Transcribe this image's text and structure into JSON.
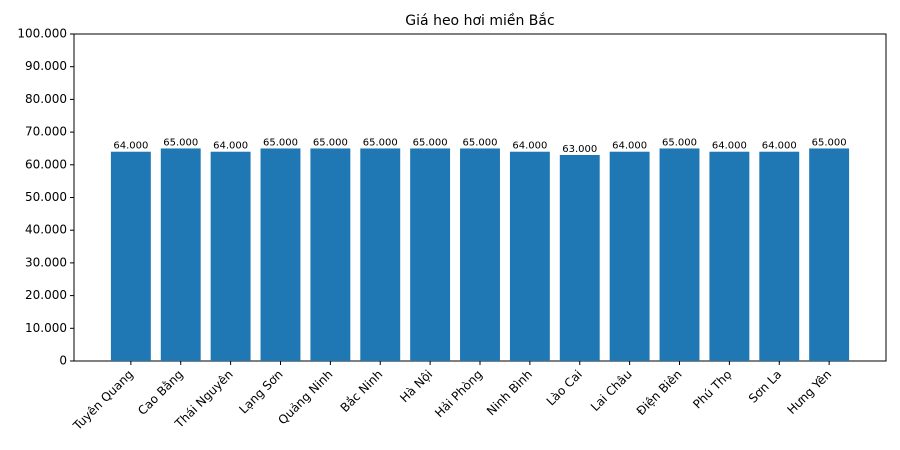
{
  "chart_data": {
    "type": "bar",
    "title": "Giá heo hơi miền Bắc",
    "categories": [
      "Tuyên Quang",
      "Cao Bằng",
      "Thái Nguyên",
      "Lạng Sơn",
      "Quảng Ninh",
      "Bắc Ninh",
      "Hà Nội",
      "Hải Phòng",
      "Ninh Bình",
      "Lào Cai",
      "Lai Châu",
      "Điện Biên",
      "Phú Thọ",
      "Sơn La",
      "Hưng Yên"
    ],
    "values": [
      64000,
      65000,
      64000,
      65000,
      65000,
      65000,
      65000,
      65000,
      64000,
      63000,
      64000,
      65000,
      64000,
      64000,
      65000
    ],
    "value_labels": [
      "64.000",
      "65.000",
      "64.000",
      "65.000",
      "65.000",
      "65.000",
      "65.000",
      "65.000",
      "64.000",
      "63.000",
      "64.000",
      "65.000",
      "64.000",
      "64.000",
      "65.000"
    ],
    "color": "#1f77b4",
    "ylim": [
      0,
      100000
    ],
    "yticks": [
      0,
      {
        "value": 10000,
        "label": "10.000"
      },
      {
        "value": 20000,
        "label": "20.000"
      },
      {
        "value": 30000,
        "label": "30.000"
      },
      {
        "value": 40000,
        "label": "40.000"
      },
      {
        "value": 50000,
        "label": "50.000"
      },
      {
        "value": 60000,
        "label": "60.000"
      },
      {
        "value": 70000,
        "label": "70.000"
      },
      {
        "value": 80000,
        "label": "80.000"
      },
      {
        "value": 90000,
        "label": "90.000"
      },
      {
        "value": 100000,
        "label": "100.000"
      }
    ],
    "grid": false
  }
}
